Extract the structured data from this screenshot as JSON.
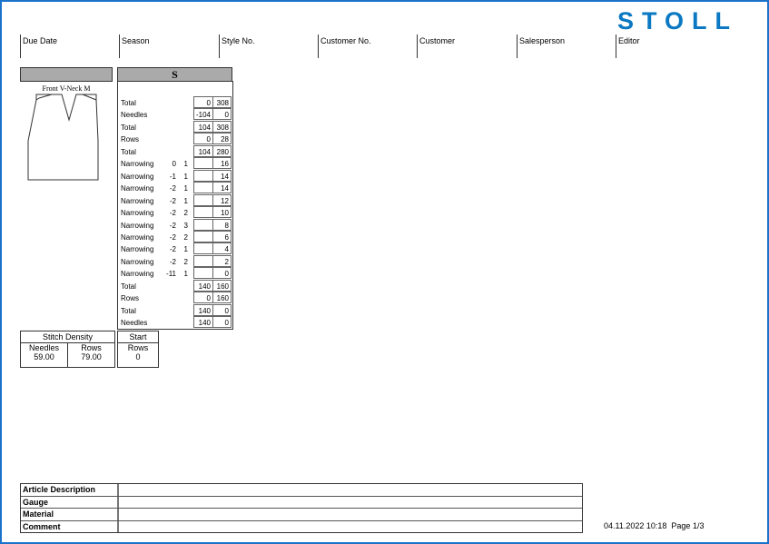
{
  "brand": "STOLL",
  "header_columns": [
    "Due Date",
    "Season",
    "Style No.",
    "Customer No.",
    "Customer",
    "Salesperson",
    "Editor"
  ],
  "size_label": "S",
  "garment_label": "Front V-Neck M",
  "rows": [
    [
      "Total",
      "",
      "",
      "0",
      "308"
    ],
    [
      "Needles",
      "",
      "",
      "-104",
      "0"
    ],
    [
      "Total",
      "",
      "",
      "104",
      "308"
    ],
    [
      "Rows",
      "",
      "",
      "0",
      "28"
    ],
    [
      "Total",
      "",
      "",
      "104",
      "280"
    ],
    [
      "Narrowing",
      "0",
      "1",
      "",
      "16"
    ],
    [
      "Narrowing",
      "-1",
      "1",
      "",
      "14"
    ],
    [
      "Narrowing",
      "-2",
      "1",
      "",
      "14"
    ],
    [
      "Narrowing",
      "-2",
      "1",
      "",
      "12"
    ],
    [
      "Narrowing",
      "-2",
      "2",
      "",
      "10"
    ],
    [
      "Narrowing",
      "-2",
      "3",
      "",
      "8"
    ],
    [
      "Narrowing",
      "-2",
      "2",
      "",
      "6"
    ],
    [
      "Narrowing",
      "-2",
      "1",
      "",
      "4"
    ],
    [
      "Narrowing",
      "-2",
      "2",
      "",
      "2"
    ],
    [
      "Narrowing",
      "-11",
      "1",
      "",
      "0"
    ],
    [
      "Total",
      "",
      "",
      "140",
      "160"
    ],
    [
      "Rows",
      "",
      "",
      "0",
      "160"
    ],
    [
      "Total",
      "",
      "",
      "140",
      "0"
    ],
    [
      "Needles",
      "",
      "",
      "140",
      "0"
    ]
  ],
  "stitch_density": {
    "title": "Stitch Density",
    "needles_label": "Needles",
    "rows_label": "Rows",
    "needles": "59.00",
    "rows": "79.00"
  },
  "start": {
    "title": "Start",
    "rows_label": "Rows",
    "rows": "0"
  },
  "bottom_labels": [
    "Article Description",
    "Gauge",
    "Material",
    "Comment"
  ],
  "footer": {
    "datetime": "04.11.2022 10:18",
    "page": "Page  1/3"
  }
}
